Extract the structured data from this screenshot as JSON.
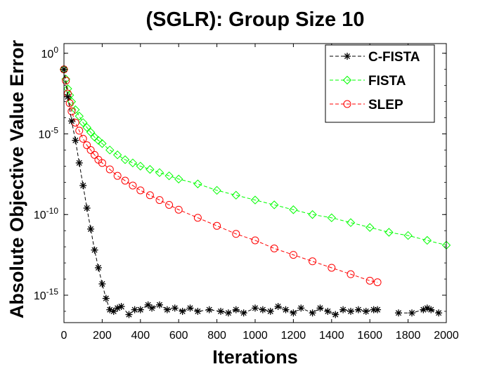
{
  "chart_data": {
    "type": "line",
    "title": "(SGLR): Group Size 10",
    "xlabel": "Iterations",
    "ylabel": "Absolute Objective Value Error",
    "scale_y": "log",
    "xlim": [
      0,
      2000
    ],
    "ylim_log10": [
      -16.7,
      0.6
    ],
    "x_ticks": [
      0,
      200,
      400,
      600,
      800,
      1000,
      1200,
      1400,
      1600,
      1800,
      2000
    ],
    "y_ticks": [
      {
        "exp": 0,
        "label": "10",
        "sup": "0"
      },
      {
        "exp": -5,
        "label": "10",
        "sup": "-5"
      },
      {
        "exp": -10,
        "label": "10",
        "sup": "-10"
      },
      {
        "exp": -15,
        "label": "10",
        "sup": "-15"
      }
    ],
    "legend": {
      "position": "top-right"
    },
    "series": [
      {
        "name": "C-FISTA",
        "color": "#000000",
        "marker": "asterisk",
        "dash": "5,3",
        "x": [
          0,
          20,
          40,
          60,
          80,
          100,
          120,
          140,
          160,
          180,
          200,
          220,
          240,
          260,
          280,
          300,
          340,
          370,
          400,
          440,
          460,
          500,
          540,
          580,
          620,
          660,
          700,
          760,
          820,
          860,
          900,
          940,
          1000,
          1040,
          1080,
          1120,
          1160,
          1200,
          1240,
          1300,
          1340,
          1380,
          1420,
          1460,
          1500,
          1540,
          1580,
          1620,
          1640
        ],
        "log10_y": [
          -1.0,
          -2.7,
          -4.2,
          -5.4,
          -6.8,
          -8.2,
          -9.6,
          -10.9,
          -12.2,
          -13.3,
          -14.3,
          -15.2,
          -15.9,
          -16.0,
          -15.8,
          -15.7,
          -16.2,
          -15.9,
          -15.9,
          -15.6,
          -15.8,
          -15.6,
          -15.9,
          -15.8,
          -16.0,
          -15.8,
          -16.0,
          -15.9,
          -16.0,
          -16.1,
          -15.9,
          -16.1,
          -15.8,
          -15.9,
          -16.0,
          -15.7,
          -15.9,
          -16.1,
          -15.8,
          -16.1,
          -15.8,
          -16.0,
          -16.2,
          -15.9,
          -16.0,
          -15.9,
          -16.0,
          -15.9,
          -15.9
        ]
      },
      {
        "name": "C-FISTA (tail)",
        "color": "#000000",
        "marker": "asterisk",
        "dash": "5,3",
        "legend": false,
        "x": [
          1750,
          1820,
          1880,
          1900,
          1920,
          1960
        ],
        "log10_y": [
          -16.1,
          -16.1,
          -15.9,
          -15.8,
          -15.9,
          -16.1
        ]
      },
      {
        "name": "FISTA",
        "color": "#00ff00",
        "marker": "diamond",
        "dash": "5,3",
        "x": [
          0,
          10,
          20,
          30,
          40,
          60,
          80,
          100,
          120,
          140,
          160,
          180,
          200,
          240,
          280,
          320,
          360,
          400,
          450,
          500,
          550,
          600,
          700,
          800,
          900,
          1000,
          1100,
          1200,
          1300,
          1400,
          1500,
          1600,
          1700,
          1800,
          1900,
          2000
        ],
        "log10_y": [
          -1.0,
          -1.6,
          -2.2,
          -2.6,
          -3.0,
          -3.5,
          -3.9,
          -4.3,
          -4.6,
          -4.9,
          -5.2,
          -5.4,
          -5.6,
          -6.0,
          -6.3,
          -6.6,
          -6.8,
          -7.0,
          -7.2,
          -7.4,
          -7.6,
          -7.8,
          -8.1,
          -8.5,
          -8.8,
          -9.1,
          -9.4,
          -9.7,
          -10.0,
          -10.2,
          -10.5,
          -10.8,
          -11.1,
          -11.3,
          -11.6,
          -11.9
        ]
      },
      {
        "name": "SLEP",
        "color": "#ff0000",
        "marker": "circle",
        "dash": "5,3",
        "x": [
          0,
          10,
          20,
          30,
          40,
          60,
          80,
          100,
          120,
          140,
          160,
          180,
          200,
          240,
          280,
          320,
          360,
          400,
          450,
          500,
          550,
          600,
          700,
          800,
          900,
          1000,
          1100,
          1200,
          1300,
          1400,
          1500,
          1600,
          1640
        ],
        "log10_y": [
          -1.0,
          -1.7,
          -2.5,
          -3.1,
          -3.6,
          -4.3,
          -4.8,
          -5.3,
          -5.7,
          -6.0,
          -6.3,
          -6.6,
          -6.8,
          -7.2,
          -7.6,
          -7.9,
          -8.2,
          -8.5,
          -8.8,
          -9.1,
          -9.4,
          -9.7,
          -10.2,
          -10.7,
          -11.2,
          -11.6,
          -12.1,
          -12.5,
          -12.9,
          -13.3,
          -13.7,
          -14.1,
          -14.2
        ]
      }
    ]
  }
}
